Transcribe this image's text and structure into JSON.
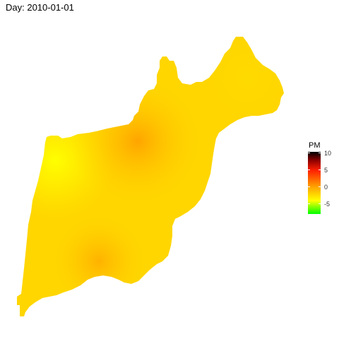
{
  "title": "Day: 2010-01-01",
  "legend": {
    "title": "PM",
    "ticks": [
      {
        "label": "10",
        "value": 10
      },
      {
        "label": "5",
        "value": 5
      },
      {
        "label": "0",
        "value": 0
      },
      {
        "label": "-5",
        "value": -5
      }
    ],
    "range": [
      -8,
      10.5
    ],
    "colors": [
      {
        "value": 10.5,
        "color": "#000000"
      },
      {
        "value": 8,
        "color": "#8b0000"
      },
      {
        "value": 5,
        "color": "#ff2000"
      },
      {
        "value": 0,
        "color": "#ffa500"
      },
      {
        "value": -4,
        "color": "#ffff00"
      },
      {
        "value": -8,
        "color": "#00ff00"
      }
    ]
  },
  "map": {
    "fill_colors": {
      "base": "#ffd600",
      "hotspot": "#ffa800",
      "coolspot": "#ffff00"
    }
  }
}
